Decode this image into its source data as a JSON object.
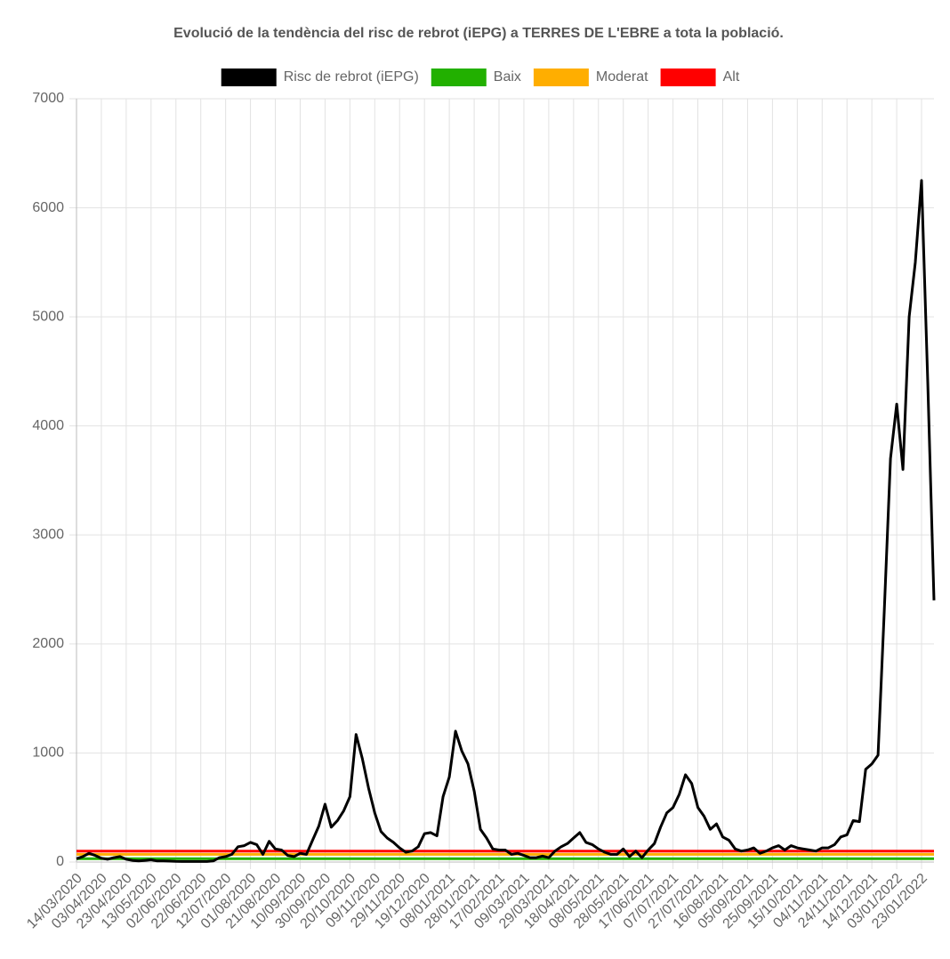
{
  "chart_data": {
    "type": "line",
    "title": "Evolució de la tendència del risc de rebrot (iEPG) a TERRES DE L'EBRE a tota la població.",
    "categories": [
      "14/03/2020",
      null,
      null,
      null,
      "03/04/2020",
      null,
      null,
      null,
      "23/04/2020",
      null,
      null,
      null,
      "13/05/2020",
      null,
      null,
      null,
      "02/06/2020",
      null,
      null,
      null,
      "22/06/2020",
      null,
      null,
      null,
      "12/07/2020",
      null,
      null,
      null,
      "01/08/2020",
      null,
      null,
      null,
      "21/08/2020",
      null,
      null,
      null,
      "10/09/2020",
      null,
      null,
      null,
      "30/09/2020",
      null,
      null,
      null,
      "20/10/2020",
      null,
      null,
      null,
      "09/11/2020",
      null,
      null,
      null,
      "29/11/2020",
      null,
      null,
      null,
      "19/12/2020",
      null,
      null,
      null,
      "08/01/2021",
      null,
      null,
      null,
      "28/01/2021",
      null,
      null,
      null,
      "17/02/2021",
      null,
      null,
      null,
      "09/03/2021",
      null,
      null,
      null,
      "29/03/2021",
      null,
      null,
      null,
      "18/04/2021",
      null,
      null,
      null,
      "08/05/2021",
      null,
      null,
      null,
      "28/05/2021",
      null,
      null,
      null,
      "17/06/2021",
      null,
      null,
      null,
      "07/07/2021",
      null,
      null,
      null,
      "27/07/2021",
      null,
      null,
      null,
      "16/08/2021",
      null,
      null,
      null,
      "05/09/2021",
      null,
      null,
      null,
      "25/09/2021",
      null,
      null,
      null,
      "15/10/2021",
      null,
      null,
      null,
      "04/11/2021",
      null,
      null,
      null,
      "24/11/2021",
      null,
      null,
      null,
      "14/12/2021",
      null,
      null,
      null,
      "03/01/2022",
      null,
      null,
      null,
      "23/01/2022",
      null,
      null
    ],
    "series": [
      {
        "name": "Risc de rebrot (iEPG)",
        "color": "#000000",
        "values": [
          30,
          50,
          80,
          60,
          35,
          25,
          40,
          50,
          25,
          15,
          10,
          15,
          20,
          10,
          10,
          8,
          6,
          5,
          5,
          5,
          5,
          5,
          10,
          40,
          50,
          70,
          140,
          150,
          180,
          160,
          70,
          190,
          120,
          110,
          60,
          50,
          80,
          70,
          200,
          330,
          530,
          320,
          380,
          470,
          600,
          1170,
          950,
          680,
          450,
          280,
          220,
          180,
          130,
          90,
          100,
          140,
          260,
          270,
          240,
          600,
          780,
          1200,
          1020,
          900,
          650,
          300,
          220,
          120,
          110,
          110,
          70,
          80,
          60,
          40,
          40,
          55,
          40,
          100,
          140,
          170,
          220,
          270,
          180,
          160,
          120,
          90,
          70,
          70,
          120,
          50,
          100,
          40,
          110,
          170,
          320,
          450,
          500,
          620,
          800,
          720,
          500,
          420,
          300,
          350,
          230,
          200,
          120,
          100,
          110,
          130,
          80,
          100,
          130,
          150,
          110,
          150,
          130,
          120,
          110,
          100,
          130,
          130,
          160,
          230,
          250,
          380,
          370,
          850,
          900,
          980,
          2300,
          3700,
          4200,
          3600,
          5000,
          5500,
          6250,
          4400,
          2400
        ]
      },
      {
        "name": "Baix",
        "color": "#22b000",
        "values": [
          30,
          30,
          30,
          30,
          30,
          30,
          30,
          30,
          30,
          30,
          30,
          30,
          30,
          30,
          30,
          30,
          30,
          30,
          30,
          30,
          30,
          30,
          30,
          30,
          30,
          30,
          30,
          30,
          30,
          30,
          30,
          30,
          30,
          30,
          30,
          30,
          30,
          30,
          30,
          30,
          30,
          30,
          30,
          30,
          30,
          30,
          30,
          30,
          30,
          30,
          30,
          30,
          30,
          30,
          30,
          30,
          30,
          30,
          30,
          30,
          30,
          30,
          30,
          30,
          30,
          30,
          30,
          30,
          30,
          30,
          30,
          30,
          30,
          30,
          30,
          30,
          30,
          30,
          30,
          30,
          30,
          30,
          30,
          30,
          30,
          30,
          30,
          30,
          30,
          30,
          30,
          30,
          30,
          30,
          30,
          30,
          30,
          30,
          30,
          30,
          30,
          30,
          30,
          30,
          30,
          30,
          30,
          30,
          30,
          30,
          30,
          30,
          30,
          30,
          30,
          30,
          30,
          30,
          30,
          30,
          30,
          30,
          30,
          30,
          30,
          30,
          30,
          30,
          30,
          30,
          30,
          30,
          30,
          30,
          30,
          30,
          30,
          30,
          30
        ]
      },
      {
        "name": "Moderat",
        "color": "#ffae00",
        "values": [
          70,
          70,
          70,
          70,
          70,
          70,
          70,
          70,
          70,
          70,
          70,
          70,
          70,
          70,
          70,
          70,
          70,
          70,
          70,
          70,
          70,
          70,
          70,
          70,
          70,
          70,
          70,
          70,
          70,
          70,
          70,
          70,
          70,
          70,
          70,
          70,
          70,
          70,
          70,
          70,
          70,
          70,
          70,
          70,
          70,
          70,
          70,
          70,
          70,
          70,
          70,
          70,
          70,
          70,
          70,
          70,
          70,
          70,
          70,
          70,
          70,
          70,
          70,
          70,
          70,
          70,
          70,
          70,
          70,
          70,
          70,
          70,
          70,
          70,
          70,
          70,
          70,
          70,
          70,
          70,
          70,
          70,
          70,
          70,
          70,
          70,
          70,
          70,
          70,
          70,
          70,
          70,
          70,
          70,
          70,
          70,
          70,
          70,
          70,
          70,
          70,
          70,
          70,
          70,
          70,
          70,
          70,
          70,
          70,
          70,
          70,
          70,
          70,
          70,
          70,
          70,
          70,
          70,
          70,
          70,
          70,
          70,
          70,
          70,
          70,
          70,
          70,
          70,
          70,
          70,
          70,
          70,
          70,
          70,
          70,
          70,
          70,
          70,
          70
        ]
      },
      {
        "name": "Alt",
        "color": "#ff0000",
        "values": [
          100,
          100,
          100,
          100,
          100,
          100,
          100,
          100,
          100,
          100,
          100,
          100,
          100,
          100,
          100,
          100,
          100,
          100,
          100,
          100,
          100,
          100,
          100,
          100,
          100,
          100,
          100,
          100,
          100,
          100,
          100,
          100,
          100,
          100,
          100,
          100,
          100,
          100,
          100,
          100,
          100,
          100,
          100,
          100,
          100,
          100,
          100,
          100,
          100,
          100,
          100,
          100,
          100,
          100,
          100,
          100,
          100,
          100,
          100,
          100,
          100,
          100,
          100,
          100,
          100,
          100,
          100,
          100,
          100,
          100,
          100,
          100,
          100,
          100,
          100,
          100,
          100,
          100,
          100,
          100,
          100,
          100,
          100,
          100,
          100,
          100,
          100,
          100,
          100,
          100,
          100,
          100,
          100,
          100,
          100,
          100,
          100,
          100,
          100,
          100,
          100,
          100,
          100,
          100,
          100,
          100,
          100,
          100,
          100,
          100,
          100,
          100,
          100,
          100,
          100,
          100,
          100,
          100,
          100,
          100,
          100,
          100,
          100,
          100,
          100,
          100,
          100,
          100,
          100,
          100,
          100,
          100,
          100,
          100,
          100,
          100,
          100,
          100,
          100
        ]
      }
    ],
    "ylim": [
      0,
      7000
    ],
    "yticks": [
      0,
      1000,
      2000,
      3000,
      4000,
      5000,
      6000,
      7000
    ],
    "grid": true,
    "legend": "top"
  }
}
